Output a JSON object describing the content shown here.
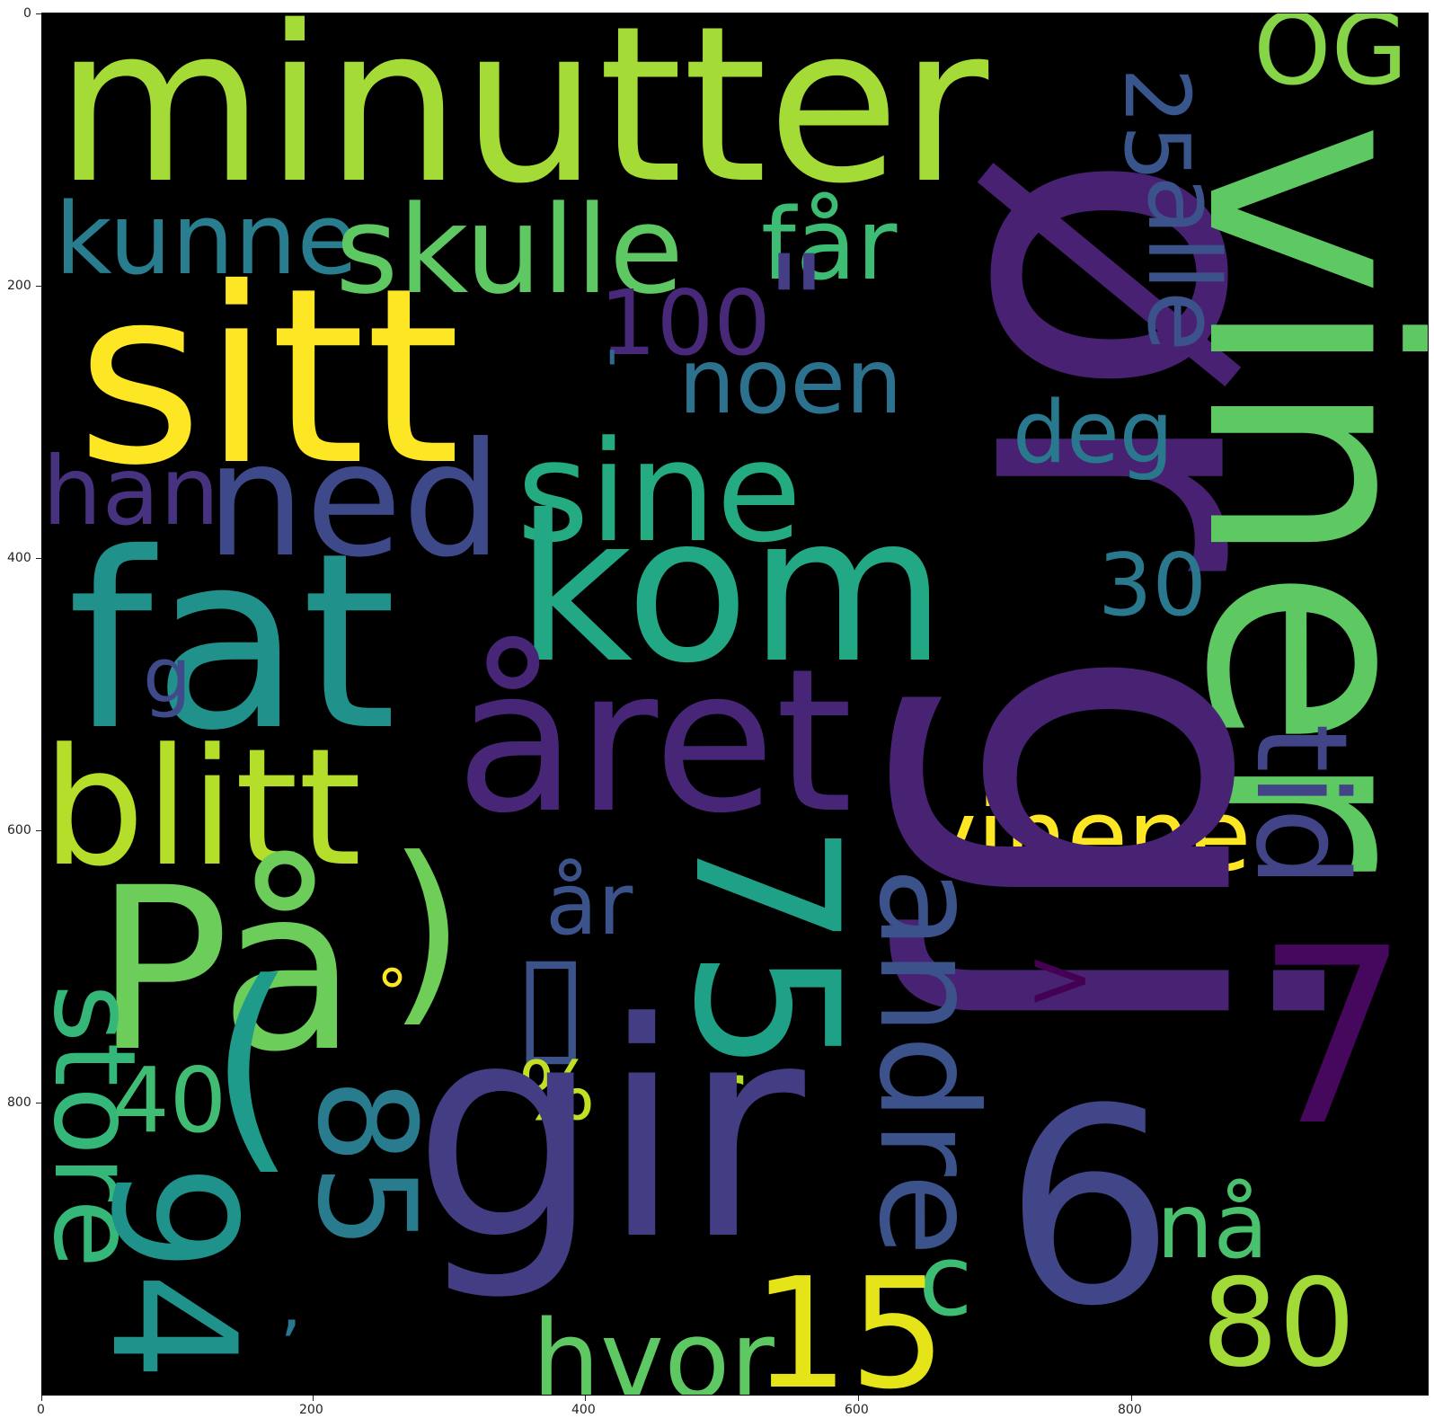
{
  "colormap": "viridis",
  "background_color": "#000000",
  "words": [
    {
      "text": "minutter",
      "color": "#a5db36"
    },
    {
      "text": "ør",
      "color": "#482173"
    },
    {
      "text": "viner",
      "color": "#5ec962"
    },
    {
      "text": "OG",
      "color": "#86d549"
    },
    {
      "text": "25",
      "color": "#39568c"
    },
    {
      "text": "alle",
      "color": "#3b528b"
    },
    {
      "text": "sitt",
      "color": "#fde725"
    },
    {
      "text": "kunne",
      "color": "#287d8e"
    },
    {
      "text": "skulle",
      "color": "#5ec962"
    },
    {
      "text": "får",
      "color": "#3dbc74"
    },
    {
      "text": "100",
      "color": "#482878"
    },
    {
      "text": "\"",
      "color": "#433e85"
    },
    {
      "text": "noen",
      "color": "#2c728e"
    },
    {
      "text": "'",
      "color": "#31688e"
    },
    {
      "text": "deg",
      "color": "#2a788e"
    },
    {
      "text": "sine",
      "color": "#25ab82"
    },
    {
      "text": "han",
      "color": "#46327e"
    },
    {
      "text": "ned",
      "color": "#3e4989"
    },
    {
      "text": "kom",
      "color": "#22a884"
    },
    {
      "text": "fat",
      "color": "#21918c"
    },
    {
      "text": "30",
      "color": "#2a788e"
    },
    {
      "text": "g",
      "color": "#3e4a89"
    },
    {
      "text": "året",
      "color": "#482677"
    },
    {
      "text": "tid",
      "color": "#414487"
    },
    {
      "text": "blitt",
      "color": "#b5de2b"
    },
    {
      "text": "vinene",
      "color": "#fde725"
    },
    {
      "text": "gj",
      "color": "#482374"
    },
    {
      "text": "75",
      "color": "#1fa187"
    },
    {
      "text": "år",
      "color": "#3b528b"
    },
    {
      "text": "På",
      "color": "#6ccd5a"
    },
    {
      "text": ")",
      "color": "#6ece58"
    },
    {
      "text": "°",
      "color": "#fde725"
    },
    {
      "text": "▯",
      "color": "#3b528b"
    },
    {
      "text": "andre",
      "color": "#3b528b"
    },
    {
      "text": ">",
      "color": "#440154"
    },
    {
      "text": "store",
      "color": "#35b779"
    },
    {
      "text": "7",
      "color": "#46085c"
    },
    {
      "text": "40",
      "color": "#40bd72"
    },
    {
      "text": "(",
      "color": "#1e9b8a"
    },
    {
      "text": "%",
      "color": "#c2df23"
    },
    {
      "text": "r",
      "color": "#b5de2b"
    },
    {
      "text": "94",
      "color": "#20928c"
    },
    {
      "text": "85",
      "color": "#297b8e"
    },
    {
      "text": "gir",
      "color": "#433d84"
    },
    {
      "text": "6",
      "color": "#404688"
    },
    {
      "text": "nå",
      "color": "#4ac16d"
    },
    {
      "text": "c",
      "color": "#3dbc74"
    },
    {
      "text": ",",
      "color": "#2a768e"
    },
    {
      "text": "15",
      "color": "#e5e419"
    },
    {
      "text": "hvor",
      "color": "#5ec962"
    },
    {
      "text": "80",
      "color": "#a2da37"
    }
  ],
  "x_axis": {
    "ticks": [
      "0",
      "200",
      "400",
      "600",
      "800"
    ]
  },
  "y_axis": {
    "ticks": [
      "0",
      "200",
      "400",
      "600",
      "800"
    ]
  }
}
